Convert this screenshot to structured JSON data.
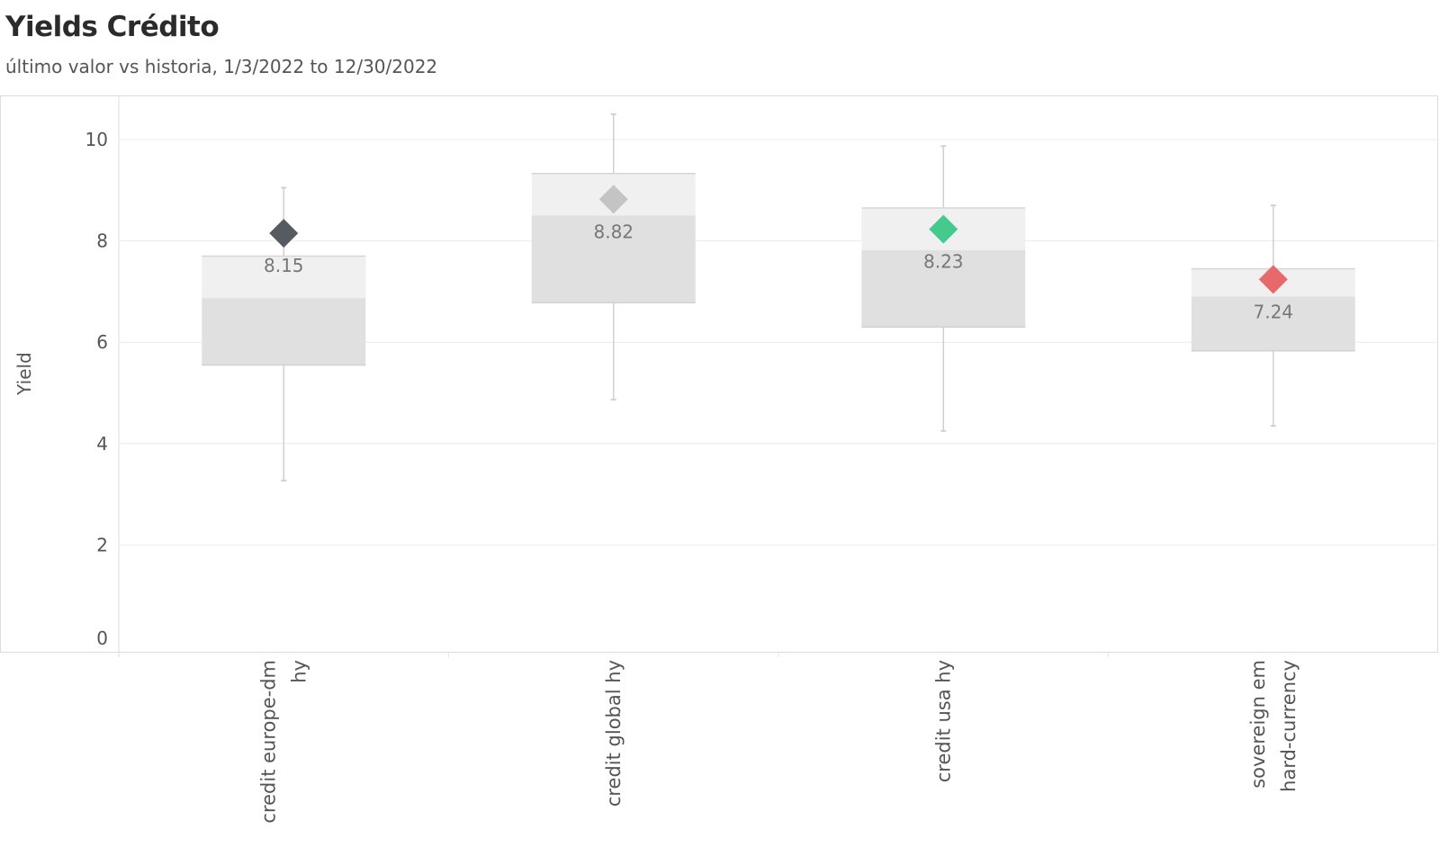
{
  "header": {
    "title": "Yields Crédito",
    "subtitle": "último valor vs historia, 1/3/2022 to 12/30/2022"
  },
  "chart_data": {
    "type": "boxplot",
    "title": "Yields Crédito",
    "subtitle": "último valor vs historia, 1/3/2022 to 12/30/2022",
    "ylabel": "Yield",
    "xlabel": "",
    "ylim": [
      0,
      10.5
    ],
    "yticks": [
      0,
      2,
      4,
      6,
      8,
      10
    ],
    "grid": true,
    "series": [
      {
        "category_lines": [
          "credit europe-dm",
          "hy"
        ],
        "min": 3.27,
        "q1": 5.55,
        "median": 6.87,
        "q3": 7.7,
        "max": 9.05,
        "last": 8.15,
        "last_label": "8.15",
        "marker_color": "#555b61"
      },
      {
        "category_lines": [
          "credit global hy"
        ],
        "min": 4.87,
        "q1": 6.78,
        "median": 8.5,
        "q3": 9.33,
        "max": 10.5,
        "last": 8.82,
        "last_label": "8.82",
        "marker_color": "#c4c4c4"
      },
      {
        "category_lines": [
          "credit usa hy"
        ],
        "min": 4.25,
        "q1": 6.3,
        "median": 7.82,
        "q3": 8.65,
        "max": 9.87,
        "last": 8.23,
        "last_label": "8.23",
        "marker_color": "#45c98d"
      },
      {
        "category_lines": [
          "sovereign em",
          "hard-currency"
        ],
        "min": 4.35,
        "q1": 5.83,
        "median": 6.9,
        "q3": 7.45,
        "max": 8.7,
        "last": 7.24,
        "last_label": "7.24",
        "marker_color": "#e8696b"
      }
    ],
    "box_colors": {
      "upper": "#f0f0f0",
      "lower": "#e0e0e0",
      "whisker": "#d0d0d0",
      "grid": "#ececec"
    }
  }
}
